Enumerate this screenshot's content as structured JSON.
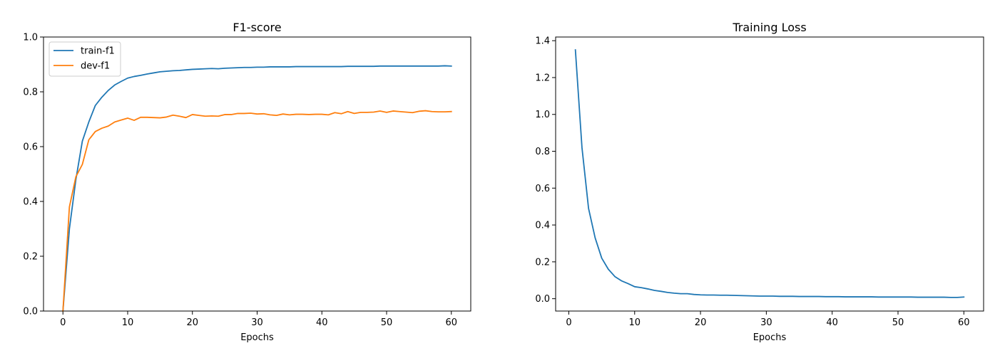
{
  "chart_data": [
    {
      "type": "line",
      "title": "F1-score",
      "xlabel": "Epochs",
      "ylabel": "",
      "xlim": [
        -3,
        63
      ],
      "ylim": [
        0.0,
        1.0
      ],
      "xticks": [
        "0",
        "10",
        "20",
        "30",
        "40",
        "50",
        "60"
      ],
      "xtick_values": [
        0,
        10,
        20,
        30,
        40,
        50,
        60
      ],
      "yticks": [
        "0.0",
        "0.2",
        "0.4",
        "0.6",
        "0.8",
        "1.0"
      ],
      "ytick_values": [
        0.0,
        0.2,
        0.4,
        0.6,
        0.8,
        1.0
      ],
      "grid": false,
      "legend_position": "top-left",
      "x": [
        0,
        1,
        2,
        3,
        4,
        5,
        6,
        7,
        8,
        9,
        10,
        11,
        12,
        13,
        14,
        15,
        16,
        17,
        18,
        19,
        20,
        21,
        22,
        23,
        24,
        25,
        26,
        27,
        28,
        29,
        30,
        31,
        32,
        33,
        34,
        35,
        36,
        37,
        38,
        39,
        40,
        41,
        42,
        43,
        44,
        45,
        46,
        47,
        48,
        49,
        50,
        51,
        52,
        53,
        54,
        55,
        56,
        57,
        58,
        59,
        60
      ],
      "series": [
        {
          "name": "train-f1",
          "color": "#1f77b4",
          "values": [
            0.0,
            0.3,
            0.48,
            0.62,
            0.69,
            0.75,
            0.78,
            0.805,
            0.825,
            0.838,
            0.85,
            0.856,
            0.86,
            0.865,
            0.869,
            0.873,
            0.875,
            0.877,
            0.878,
            0.88,
            0.882,
            0.883,
            0.884,
            0.885,
            0.884,
            0.886,
            0.887,
            0.888,
            0.889,
            0.889,
            0.89,
            0.89,
            0.891,
            0.891,
            0.891,
            0.891,
            0.892,
            0.892,
            0.892,
            0.892,
            0.892,
            0.892,
            0.892,
            0.892,
            0.893,
            0.893,
            0.893,
            0.893,
            0.893,
            0.894,
            0.894,
            0.894,
            0.894,
            0.894,
            0.894,
            0.894,
            0.894,
            0.894,
            0.894,
            0.895,
            0.894
          ]
        },
        {
          "name": "dev-f1",
          "color": "#ff7f0e",
          "values": [
            0.0,
            0.38,
            0.49,
            0.535,
            0.625,
            0.655,
            0.667,
            0.675,
            0.69,
            0.697,
            0.704,
            0.696,
            0.707,
            0.707,
            0.706,
            0.705,
            0.708,
            0.715,
            0.711,
            0.706,
            0.717,
            0.714,
            0.711,
            0.712,
            0.711,
            0.717,
            0.717,
            0.721,
            0.721,
            0.722,
            0.719,
            0.72,
            0.716,
            0.714,
            0.719,
            0.716,
            0.718,
            0.718,
            0.717,
            0.718,
            0.718,
            0.716,
            0.724,
            0.72,
            0.728,
            0.721,
            0.725,
            0.725,
            0.726,
            0.73,
            0.725,
            0.73,
            0.728,
            0.726,
            0.724,
            0.729,
            0.731,
            0.728,
            0.727,
            0.727,
            0.728
          ]
        }
      ]
    },
    {
      "type": "line",
      "title": "Training Loss",
      "xlabel": "Epochs",
      "ylabel": "",
      "xlim": [
        -2,
        63
      ],
      "ylim": [
        -0.067,
        1.42
      ],
      "xticks": [
        "0",
        "10",
        "20",
        "30",
        "40",
        "50",
        "60"
      ],
      "xtick_values": [
        0,
        10,
        20,
        30,
        40,
        50,
        60
      ],
      "yticks": [
        "0.0",
        "0.2",
        "0.4",
        "0.6",
        "0.8",
        "1.0",
        "1.2",
        "1.4"
      ],
      "ytick_values": [
        0.0,
        0.2,
        0.4,
        0.6,
        0.8,
        1.0,
        1.2,
        1.4
      ],
      "grid": false,
      "x": [
        1,
        2,
        3,
        4,
        5,
        6,
        7,
        8,
        9,
        10,
        11,
        12,
        13,
        14,
        15,
        16,
        17,
        18,
        19,
        20,
        21,
        22,
        23,
        24,
        25,
        26,
        27,
        28,
        29,
        30,
        31,
        32,
        33,
        34,
        35,
        36,
        37,
        38,
        39,
        40,
        41,
        42,
        43,
        44,
        45,
        46,
        47,
        48,
        49,
        50,
        51,
        52,
        53,
        54,
        55,
        56,
        57,
        58,
        59,
        60
      ],
      "series": [
        {
          "color": "#1f77b4",
          "values": [
            1.35,
            0.82,
            0.49,
            0.33,
            0.22,
            0.16,
            0.12,
            0.097,
            0.082,
            0.065,
            0.06,
            0.053,
            0.045,
            0.04,
            0.034,
            0.03,
            0.027,
            0.027,
            0.023,
            0.021,
            0.02,
            0.02,
            0.019,
            0.019,
            0.018,
            0.017,
            0.016,
            0.015,
            0.014,
            0.014,
            0.014,
            0.013,
            0.013,
            0.013,
            0.012,
            0.012,
            0.012,
            0.012,
            0.011,
            0.011,
            0.011,
            0.01,
            0.01,
            0.01,
            0.01,
            0.01,
            0.009,
            0.009,
            0.009,
            0.009,
            0.009,
            0.009,
            0.008,
            0.008,
            0.008,
            0.008,
            0.008,
            0.007,
            0.007,
            0.009
          ]
        }
      ]
    }
  ]
}
